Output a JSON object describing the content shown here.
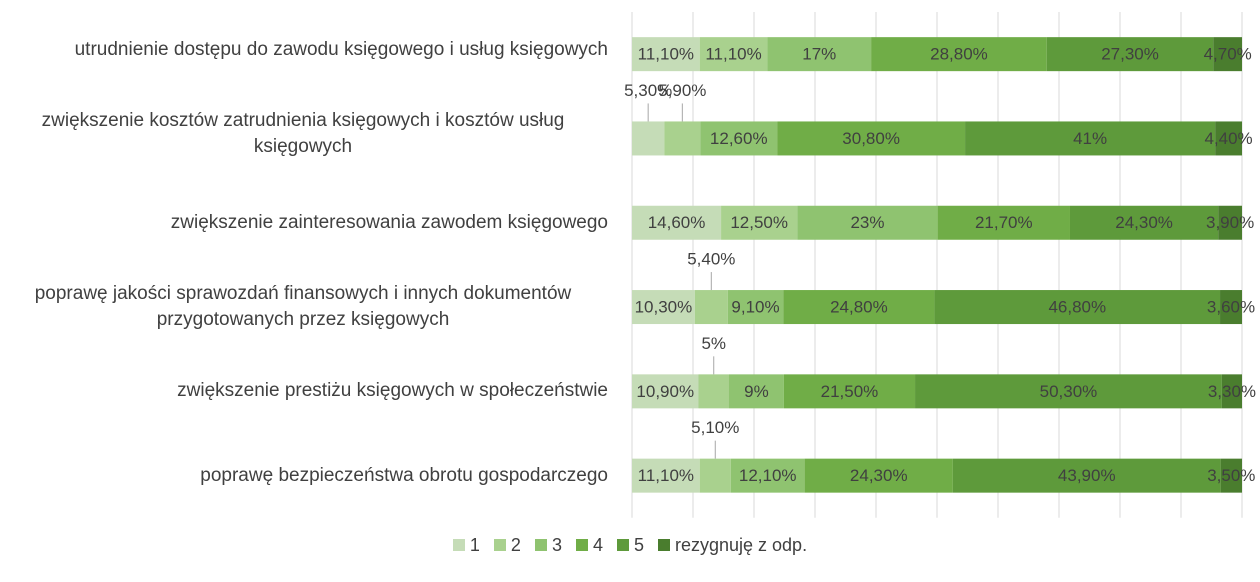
{
  "chart_data": {
    "type": "stacked-bar-horizontal",
    "categories": [
      "utrudnienie dostępu do zawodu księgowego i usług księgowych",
      "zwiększenie kosztów zatrudnienia księgowych i kosztów usług księgowych",
      "zwiększenie zainteresowania zawodem księgowego",
      "poprawę jakości sprawozdań finansowych i innych dokumentów przygotowanych przez księgowych",
      "zwiększenie prestiżu księgowych w społeczeństwie",
      "poprawę bezpieczeństwa obrotu gospodarczego"
    ],
    "series": [
      {
        "name": "1",
        "color": "#c5dcb7",
        "values": [
          11.1,
          5.3,
          14.6,
          10.3,
          10.9,
          11.1
        ],
        "value_labels": [
          "11,10%",
          "5,30%",
          "14,60%",
          "10,30%",
          "10,90%",
          "11,10%"
        ]
      },
      {
        "name": "2",
        "color": "#a9d18e",
        "values": [
          11.1,
          5.9,
          12.5,
          5.4,
          5,
          5.1
        ],
        "value_labels": [
          "11,10%",
          "5,90%",
          "12,50%",
          "5,40%",
          "5%",
          "5,10%"
        ]
      },
      {
        "name": "3",
        "color": "#8fc370",
        "values": [
          17,
          12.6,
          23,
          9.1,
          9,
          12.1
        ],
        "value_labels": [
          "17%",
          "12,60%",
          "23%",
          "9,10%",
          "9%",
          "12,10%"
        ]
      },
      {
        "name": "4",
        "color": "#70ad47",
        "values": [
          28.8,
          30.8,
          21.7,
          24.8,
          21.5,
          24.3
        ],
        "value_labels": [
          "28,80%",
          "30,80%",
          "21,70%",
          "24,80%",
          "21,50%",
          "24,30%"
        ]
      },
      {
        "name": "5",
        "color": "#5e9a3b",
        "values": [
          27.3,
          41,
          24.3,
          46.8,
          50.3,
          43.9
        ],
        "value_labels": [
          "27,30%",
          "41%",
          "24,30%",
          "46,80%",
          "50,30%",
          "43,90%"
        ]
      },
      {
        "name": "rezygnuję z odp.",
        "color": "#4a7d2e",
        "values": [
          4.7,
          4.4,
          3.9,
          3.6,
          3.3,
          3.5
        ],
        "value_labels": [
          "4,70%",
          "4,40%",
          "3,90%",
          "3,60%",
          "3,30%",
          "3,50%"
        ]
      }
    ],
    "xlim": [
      0,
      100
    ],
    "xticks": [
      0,
      10,
      20,
      30,
      40,
      50,
      60,
      70,
      80,
      90,
      100
    ],
    "grid": true,
    "legend": "bottom"
  }
}
